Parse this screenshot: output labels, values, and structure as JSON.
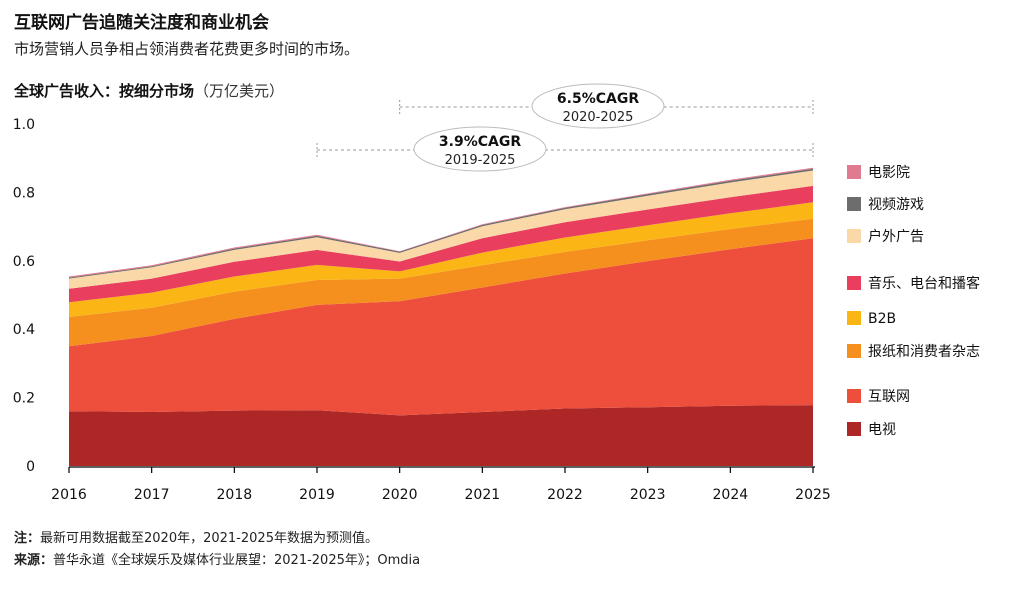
{
  "header": {
    "title": "互联网广告追随关注度和商业机会",
    "subtitle": "市场营销人员争相占领消费者花费更多时间的市场。"
  },
  "chart_data": {
    "type": "area",
    "stacked": true,
    "title": "全球广告收入：按细分市场",
    "unit": "（万亿美元）",
    "x": [
      "2016",
      "2017",
      "2018",
      "2019",
      "2020",
      "2021",
      "2022",
      "2023",
      "2024",
      "2025"
    ],
    "ylim": [
      0,
      1.0
    ],
    "yticks": [
      "0",
      "0.2",
      "0.4",
      "0.6",
      "0.8",
      "1.0"
    ],
    "grid": false,
    "legend_position": "right",
    "series": [
      {
        "name": "电视",
        "color": "#ad2727",
        "values": [
          0.16,
          0.158,
          0.162,
          0.163,
          0.148,
          0.158,
          0.168,
          0.172,
          0.176,
          0.178
        ]
      },
      {
        "name": "互联网",
        "color": "#ee4e3c",
        "values": [
          0.19,
          0.222,
          0.268,
          0.308,
          0.334,
          0.364,
          0.395,
          0.427,
          0.458,
          0.488
        ]
      },
      {
        "name": "报纸和消费者杂志",
        "color": "#f5901f",
        "values": [
          0.086,
          0.083,
          0.08,
          0.073,
          0.066,
          0.065,
          0.063,
          0.061,
          0.059,
          0.057
        ]
      },
      {
        "name": "B2B",
        "color": "#fbb616",
        "values": [
          0.043,
          0.044,
          0.044,
          0.044,
          0.021,
          0.037,
          0.042,
          0.044,
          0.046,
          0.048
        ]
      },
      {
        "name": "音乐、电台和播客",
        "color": "#ea3e5e",
        "values": [
          0.039,
          0.041,
          0.043,
          0.044,
          0.029,
          0.042,
          0.045,
          0.046,
          0.047,
          0.048
        ]
      },
      {
        "name": "户外广告",
        "color": "#fbd8a8",
        "values": [
          0.03,
          0.033,
          0.035,
          0.037,
          0.025,
          0.035,
          0.038,
          0.04,
          0.043,
          0.045
        ]
      },
      {
        "name": "视频游戏",
        "color": "#6d6d6d",
        "values": [
          0.003,
          0.003,
          0.004,
          0.004,
          0.004,
          0.004,
          0.004,
          0.005,
          0.005,
          0.005
        ]
      },
      {
        "name": "电影院",
        "color": "#e07a8f",
        "values": [
          0.003,
          0.003,
          0.003,
          0.003,
          0.001,
          0.002,
          0.002,
          0.002,
          0.003,
          0.003
        ]
      }
    ],
    "legend_order": [
      "电影院",
      "视频游戏",
      "户外广告",
      "音乐、电台和播客",
      "B2B",
      "报纸和消费者杂志",
      "互联网",
      "电视"
    ],
    "annotations": [
      {
        "label": "3.9%CAGR",
        "period": "2019-2025",
        "from": "2019",
        "to": "2025"
      },
      {
        "label": "6.5%CAGR",
        "period": "2020-2025",
        "from": "2020",
        "to": "2025"
      }
    ]
  },
  "footer": {
    "note_label": "注：",
    "note_text": "最新可用数据截至2020年，2021-2025年数据为预测值。",
    "source_label": "来源：",
    "source_text": "普华永道《全球娱乐及媒体行业展望：2021-2025年》；Omdia"
  }
}
